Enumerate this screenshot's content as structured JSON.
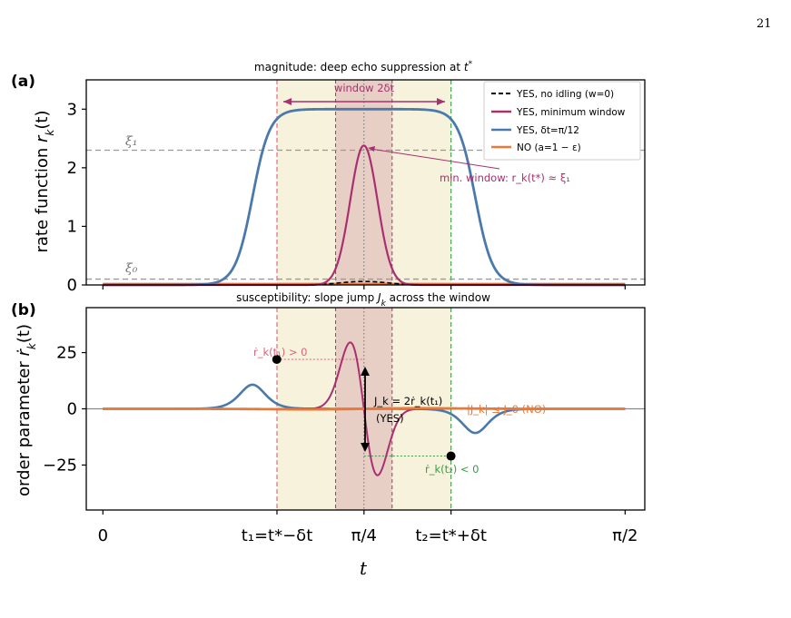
{
  "page_number": "21",
  "colors": {
    "blue": "#4a7aab",
    "magenta": "#a8306f",
    "orange": "#e8793a",
    "pink": "#e0607a",
    "green": "#3a9a4a",
    "window_outer": "#f6f2dc",
    "window_inner": "#e8cfc6",
    "gray_dash": "#999999"
  },
  "chart_data": [
    {
      "type": "line",
      "panel_label": "(a)",
      "title": "magnitude: deep echo suppression at t*",
      "title_main": "magnitude: deep echo suppression at ",
      "title_sym": "t",
      "title_sup": "*",
      "ylabel": "rate function r_k(t)",
      "ylabel_main": "rate function ",
      "ylabel_sym": "r",
      "ylabel_sub": "k",
      "ylabel_arg": "(t)",
      "ylim": [
        0,
        3.5
      ],
      "yticks": [
        "0",
        "1",
        "2",
        "3"
      ],
      "xi1_label": "ξ₁",
      "xi0_label": "ξ₀",
      "xi1_value": 2.3,
      "xi0_value": 0.1,
      "window_label": "window 2δt",
      "min_window_annotation": "min. window: r_k(t*) ≈ ξ₁",
      "legend": [
        {
          "key": "no_idling",
          "label": "YES, no idling (w=0)",
          "style": "dashed"
        },
        {
          "key": "min_window",
          "label": "YES, minimum window",
          "style": "solid"
        },
        {
          "key": "dt",
          "label": "YES, δt=π/12",
          "style": "solid"
        },
        {
          "key": "no",
          "label": "NO (a=1 − ε)",
          "style": "solid"
        }
      ],
      "series": [
        {
          "name": "YES, δt=π/12",
          "color": "blue",
          "shape": "plateau",
          "peak": 3.0,
          "start": 0.4,
          "end": 1.17
        },
        {
          "name": "YES, minimum window",
          "color": "magenta",
          "shape": "peak",
          "peak": 2.38,
          "center": 0.785
        },
        {
          "name": "YES, no idling (w=0)",
          "color": "black",
          "shape": "peak",
          "peak": 0.08,
          "center": 0.785
        },
        {
          "name": "NO (a=1 − ε)",
          "color": "orange",
          "shape": "flat",
          "peak": 0.02
        }
      ]
    },
    {
      "type": "line",
      "panel_label": "(b)",
      "title": "susceptibility: slope jump J_k across the window",
      "title_main": "susceptibility: slope jump ",
      "title_sym": "J",
      "title_sub": "k",
      "title_tail": " across the window",
      "ylabel": "order parameter ṙ_k(t)",
      "ylabel_main": "order parameter ",
      "ylabel_sym": "ṙ",
      "ylabel_sub": "k",
      "ylabel_arg": "(t)",
      "ylim": [
        -45,
        45
      ],
      "yticks": [
        "25",
        "0",
        "−25"
      ],
      "annotations": {
        "left_slope": "ṙ_k(t₁) > 0",
        "right_slope": "ṙ_k(t₂) < 0",
        "jump": "J_k = 2ṙ_k(t₁)",
        "jump_yes": "(YES)",
        "no_label": "|J_k| ≤ J_0 (NO)"
      },
      "points": [
        {
          "label": "t1",
          "x": 0.523,
          "y": 22
        },
        {
          "label": "t2",
          "x": 1.047,
          "y": -21
        }
      ],
      "series": [
        {
          "name": "YES, δt=π/12",
          "color": "blue"
        },
        {
          "name": "YES, minimum window",
          "color": "magenta"
        },
        {
          "name": "NO (a=1 − ε)",
          "color": "orange"
        }
      ]
    }
  ],
  "xaxis": {
    "xlabel": "t",
    "ticks": [
      {
        "value": 0,
        "label": "0"
      },
      {
        "value": 0.5236,
        "label": "t₁=t*−δt"
      },
      {
        "value": 0.7854,
        "label": "π/4"
      },
      {
        "value": 1.0472,
        "label": "t₂=t*+δt"
      },
      {
        "value": 1.5708,
        "label": "π/2"
      }
    ],
    "xlim": [
      -0.05,
      1.63
    ],
    "windows": {
      "outer": [
        0.5236,
        1.0472
      ],
      "inner": [
        0.7,
        0.87
      ],
      "center": 0.7854
    }
  }
}
